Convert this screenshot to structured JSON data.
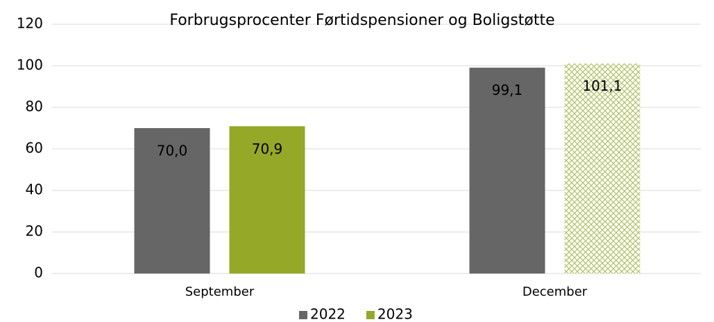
{
  "chart_data": {
    "type": "bar",
    "title": "Forbrugsprocenter Førtidspensioner og Boligstøtte",
    "categories": [
      "September",
      "December"
    ],
    "series": [
      {
        "name": "2022",
        "color": "#666666",
        "values": [
          70.0,
          99.1
        ],
        "value_labels": [
          "70,0",
          "99,1"
        ]
      },
      {
        "name": "2023",
        "color": "#95a828",
        "values": [
          70.9,
          101.1
        ],
        "value_labels": [
          "70,9",
          "101,1"
        ],
        "hatched_indices": [
          1
        ]
      }
    ],
    "ylim": [
      0,
      120
    ],
    "yticks": [
      0,
      20,
      40,
      60,
      80,
      100,
      120
    ],
    "grid": true,
    "legend": "bottom"
  }
}
